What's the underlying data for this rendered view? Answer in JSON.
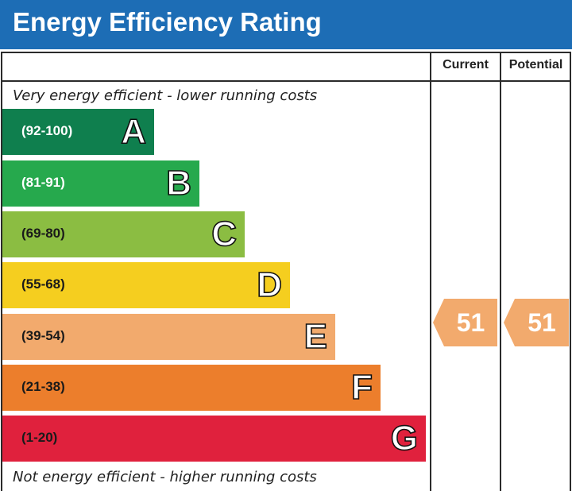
{
  "title": "Energy Efficiency Rating",
  "columns": {
    "current": "Current",
    "potential": "Potential"
  },
  "top_note": "Very energy efficient - lower running costs",
  "bottom_note": "Not energy efficient - higher running costs",
  "bands": [
    {
      "letter": "A",
      "range": "(92-100)",
      "color": "#0f7f4e",
      "range_color": "#ffffff"
    },
    {
      "letter": "B",
      "range": "(81-91)",
      "color": "#26a94d",
      "range_color": "#ffffff"
    },
    {
      "letter": "C",
      "range": "(69-80)",
      "color": "#8bbd42",
      "range_color": "#1a1a1a"
    },
    {
      "letter": "D",
      "range": "(55-68)",
      "color": "#f5ce1f",
      "range_color": "#1a1a1a"
    },
    {
      "letter": "E",
      "range": "(39-54)",
      "color": "#f2aa6d",
      "range_color": "#1a1a1a"
    },
    {
      "letter": "F",
      "range": "(21-38)",
      "color": "#ec7e2c",
      "range_color": "#1a1a1a"
    },
    {
      "letter": "G",
      "range": "(1-20)",
      "color": "#e0213d",
      "range_color": "#1a1a1a"
    }
  ],
  "ratings": {
    "current": {
      "value": "51",
      "band": "E",
      "color": "#f2aa6d"
    },
    "potential": {
      "value": "51",
      "band": "E",
      "color": "#f2aa6d"
    }
  }
}
